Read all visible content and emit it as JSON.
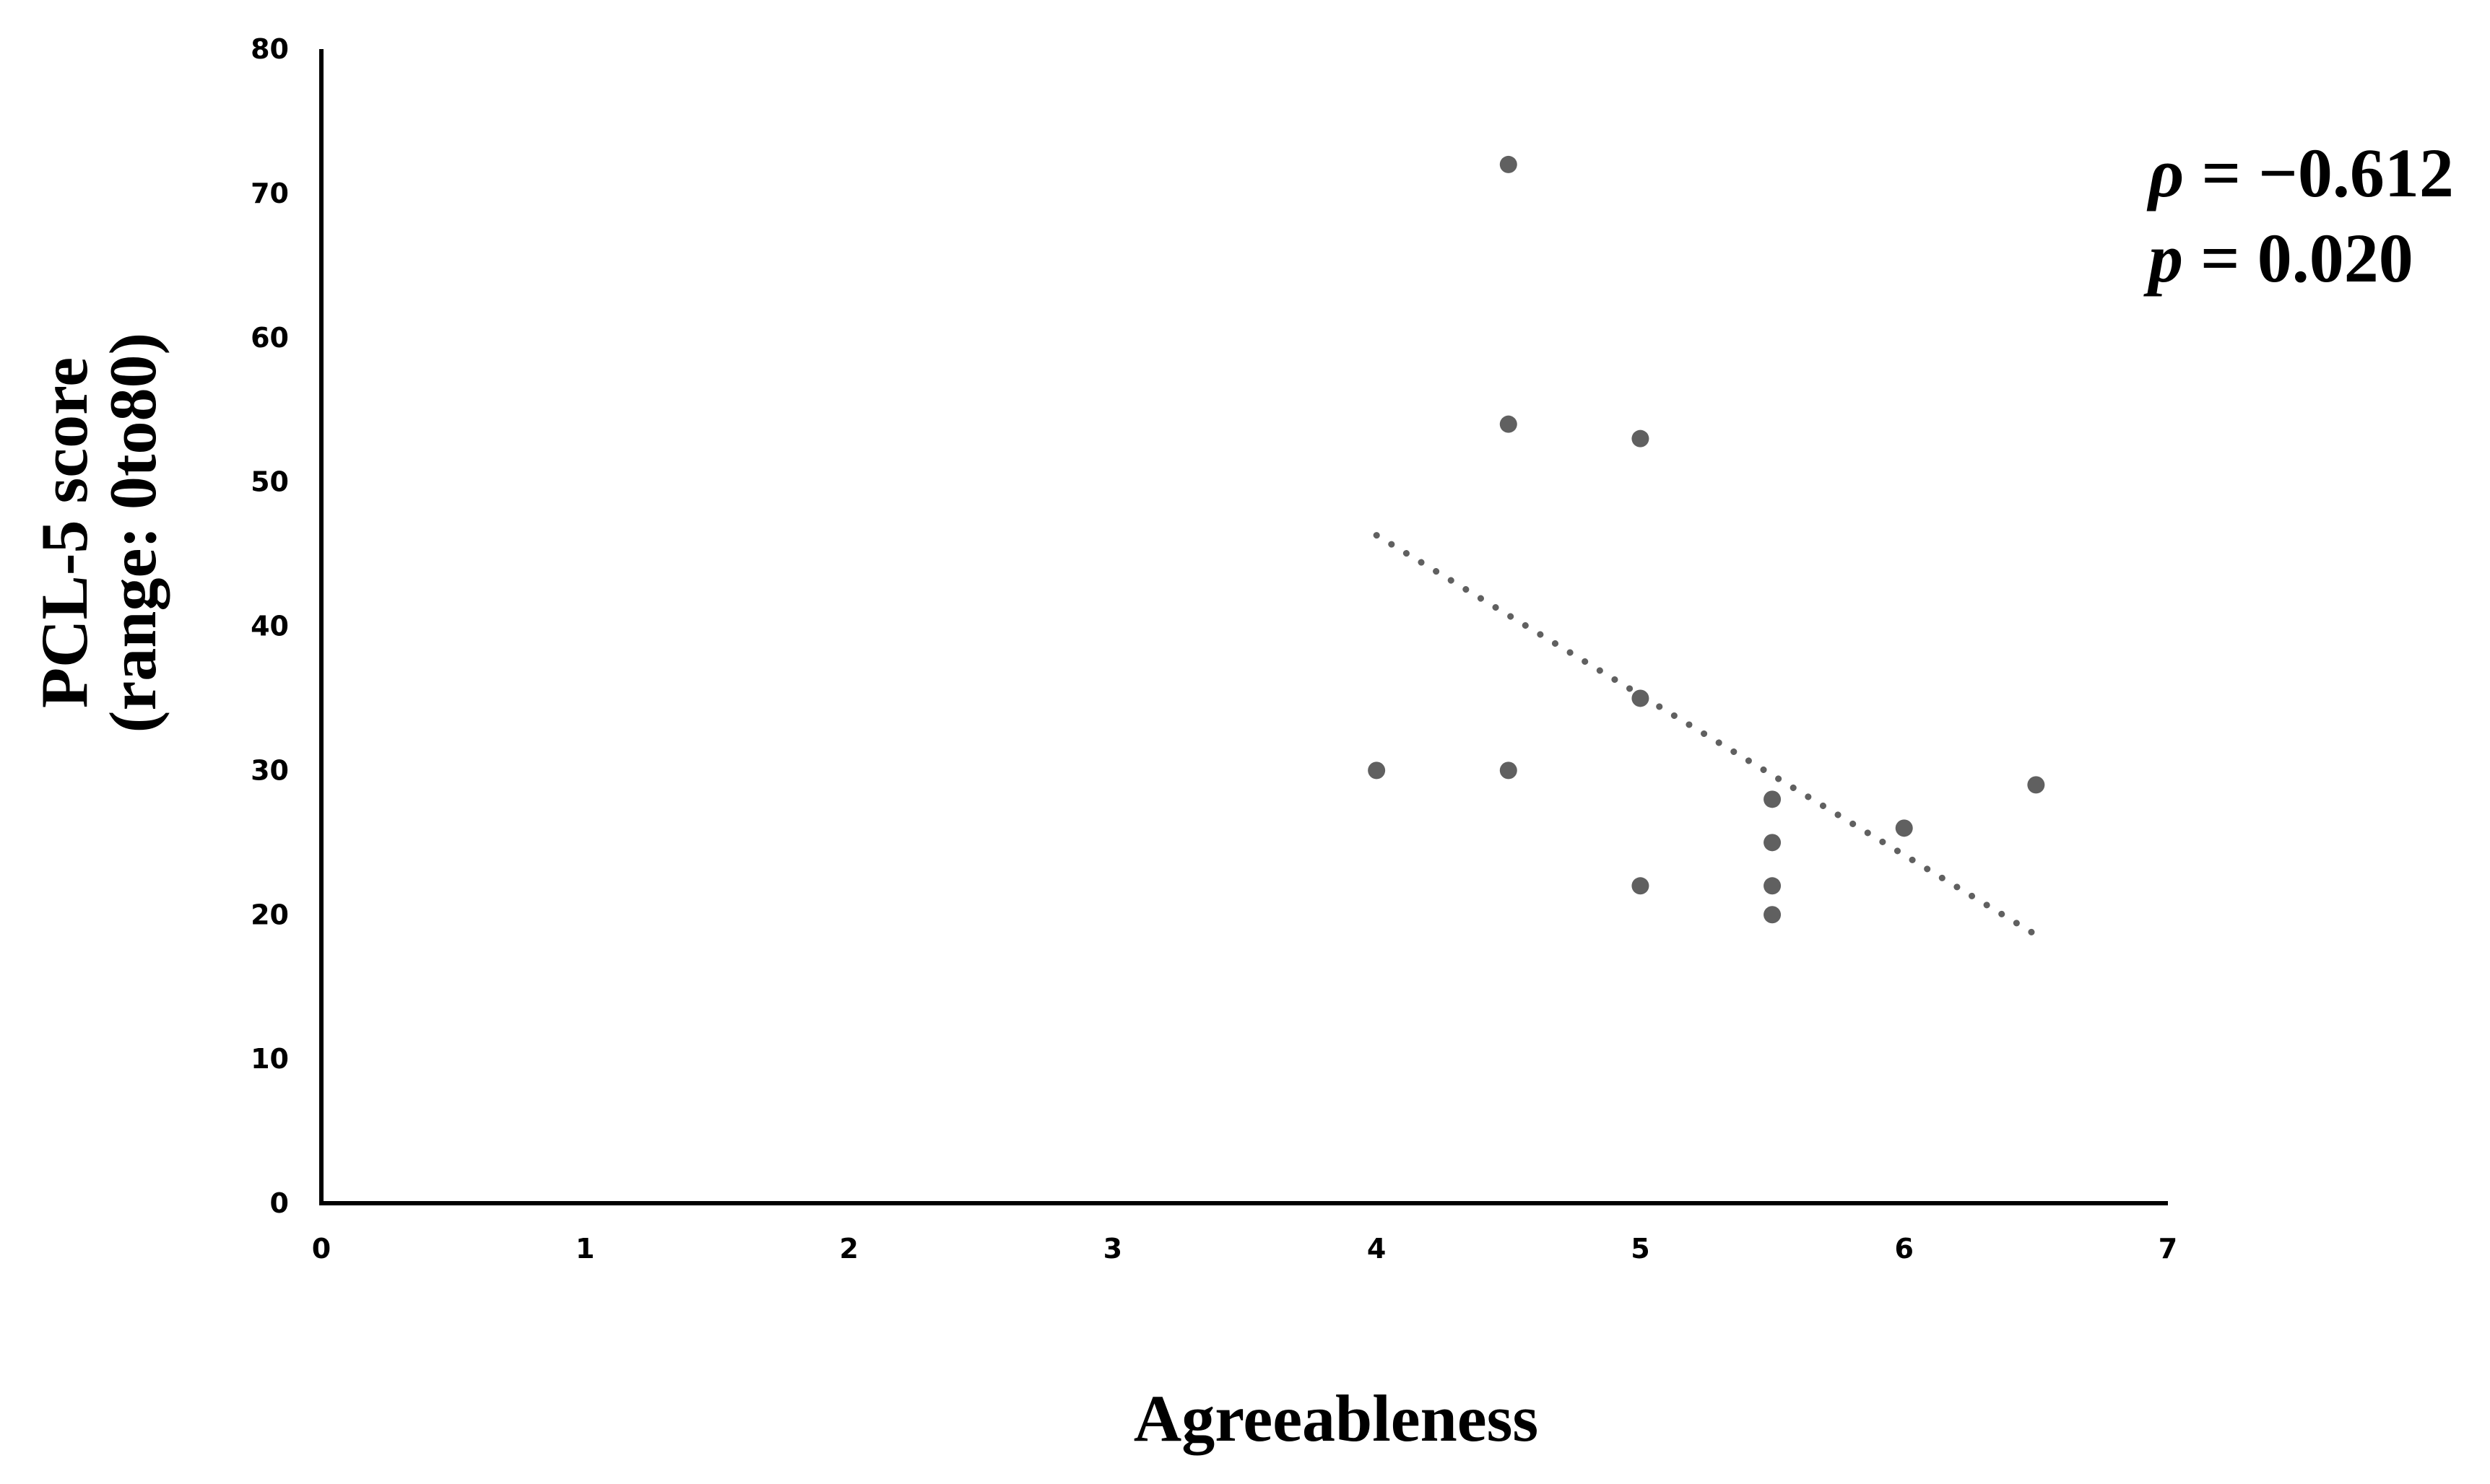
{
  "chart_data": {
    "type": "scatter",
    "xlabel": "Agreeableness",
    "ylabel": "PCL-5 score",
    "ylabel_line2": "(range: 0to80)",
    "xlim": [
      0,
      7
    ],
    "ylim": [
      0,
      80
    ],
    "x_ticks": [
      0,
      1,
      2,
      3,
      4,
      5,
      6,
      7
    ],
    "y_ticks": [
      0,
      10,
      20,
      30,
      40,
      50,
      60,
      70,
      80
    ],
    "grid": false,
    "points": [
      {
        "x": 4.0,
        "y": 30
      },
      {
        "x": 4.5,
        "y": 72
      },
      {
        "x": 4.5,
        "y": 54
      },
      {
        "x": 4.5,
        "y": 30
      },
      {
        "x": 5.0,
        "y": 53
      },
      {
        "x": 5.0,
        "y": 35
      },
      {
        "x": 5.0,
        "y": 22
      },
      {
        "x": 5.5,
        "y": 28
      },
      {
        "x": 5.5,
        "y": 25
      },
      {
        "x": 5.5,
        "y": 22
      },
      {
        "x": 5.5,
        "y": 20
      },
      {
        "x": 6.0,
        "y": 26
      },
      {
        "x": 6.5,
        "y": 29
      }
    ],
    "trendline": {
      "style": "dotted",
      "x_start": 4.0,
      "y_start": 46.3,
      "x_end": 6.5,
      "y_end": 18.6
    },
    "annotations": {
      "rho_symbol": "ρ",
      "rho_value": " = −0.612",
      "p_symbol": "p",
      "p_value": " = 0.020"
    },
    "colors": {
      "points": "#606060",
      "trendline": "#606060",
      "axis": "#000000"
    }
  }
}
